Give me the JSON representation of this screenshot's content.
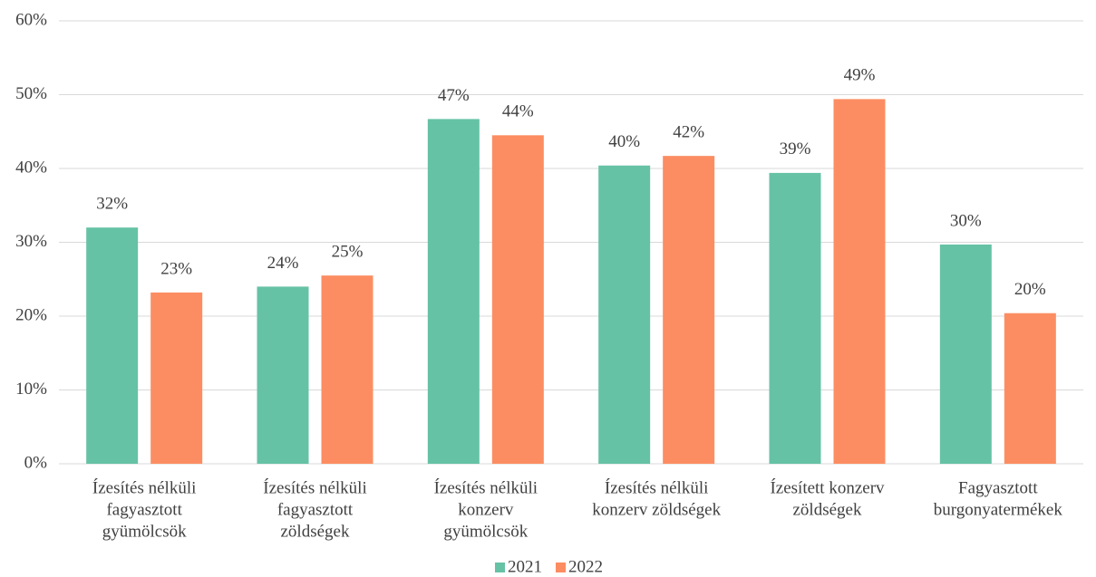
{
  "chart_data": {
    "type": "bar",
    "categories": [
      [
        "Ízesítés nélküli",
        "fagyasztott",
        "gyümölcsök"
      ],
      [
        "Ízesítés nélküli",
        "fagyasztott",
        "zöldségek"
      ],
      [
        "Ízesítés nélküli",
        "konzerv",
        "gyümölcsök"
      ],
      [
        "Ízesítés nélküli",
        "konzerv zöldségek"
      ],
      [
        "Ízesített konzerv",
        "zöldségek"
      ],
      [
        "Fagyasztott",
        "burgonyatermékek"
      ]
    ],
    "series": [
      {
        "name": "2021",
        "color": "#66c2a5",
        "values": [
          32.0,
          24.0,
          46.7,
          40.4,
          39.4,
          29.7
        ],
        "value_labels": [
          "32%",
          "24%",
          "47%",
          "40%",
          "39%",
          "30%"
        ]
      },
      {
        "name": "2022",
        "color": "#fc8d62",
        "values": [
          23.2,
          25.5,
          44.5,
          41.7,
          49.4,
          20.4
        ],
        "value_labels": [
          "23%",
          "25%",
          "44%",
          "42%",
          "49%",
          "20%"
        ]
      }
    ],
    "ylim": [
      0,
      60
    ],
    "yticks": [
      {
        "value": 0,
        "label": "0%"
      },
      {
        "value": 10,
        "label": "10%"
      },
      {
        "value": 20,
        "label": "20%"
      },
      {
        "value": 30,
        "label": "30%"
      },
      {
        "value": 40,
        "label": "40%"
      },
      {
        "value": 50,
        "label": "50%"
      },
      {
        "value": 60,
        "label": "60%"
      }
    ],
    "grid": true,
    "legend": "bottom"
  }
}
